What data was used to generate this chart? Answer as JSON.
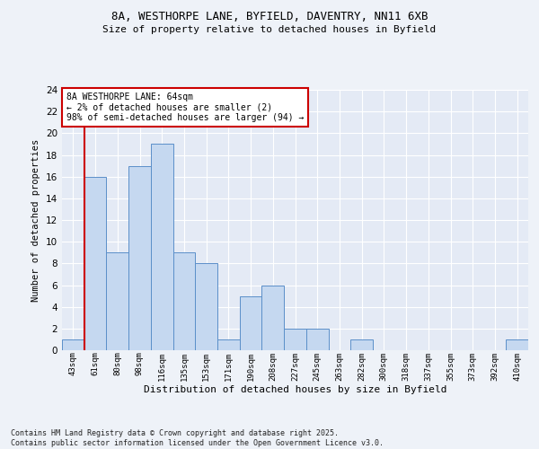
{
  "title_line1": "8A, WESTHORPE LANE, BYFIELD, DAVENTRY, NN11 6XB",
  "title_line2": "Size of property relative to detached houses in Byfield",
  "xlabel": "Distribution of detached houses by size in Byfield",
  "ylabel": "Number of detached properties",
  "categories": [
    "43sqm",
    "61sqm",
    "80sqm",
    "98sqm",
    "116sqm",
    "135sqm",
    "153sqm",
    "171sqm",
    "190sqm",
    "208sqm",
    "227sqm",
    "245sqm",
    "263sqm",
    "282sqm",
    "300sqm",
    "318sqm",
    "337sqm",
    "355sqm",
    "373sqm",
    "392sqm",
    "410sqm"
  ],
  "values": [
    1,
    16,
    9,
    17,
    19,
    9,
    8,
    1,
    5,
    6,
    2,
    2,
    0,
    1,
    0,
    0,
    0,
    0,
    0,
    0,
    1
  ],
  "bar_color": "#c5d8f0",
  "bar_edge_color": "#5b8fc9",
  "red_line_index": 1,
  "ylim": [
    0,
    24
  ],
  "yticks": [
    0,
    2,
    4,
    6,
    8,
    10,
    12,
    14,
    16,
    18,
    20,
    22,
    24
  ],
  "annotation_text": "8A WESTHORPE LANE: 64sqm\n← 2% of detached houses are smaller (2)\n98% of semi-detached houses are larger (94) →",
  "annotation_box_color": "#ffffff",
  "annotation_box_edge_color": "#cc0000",
  "footer_text": "Contains HM Land Registry data © Crown copyright and database right 2025.\nContains public sector information licensed under the Open Government Licence v3.0.",
  "background_color": "#eef2f8",
  "plot_bg_color": "#e4eaf5",
  "grid_color": "#ffffff"
}
